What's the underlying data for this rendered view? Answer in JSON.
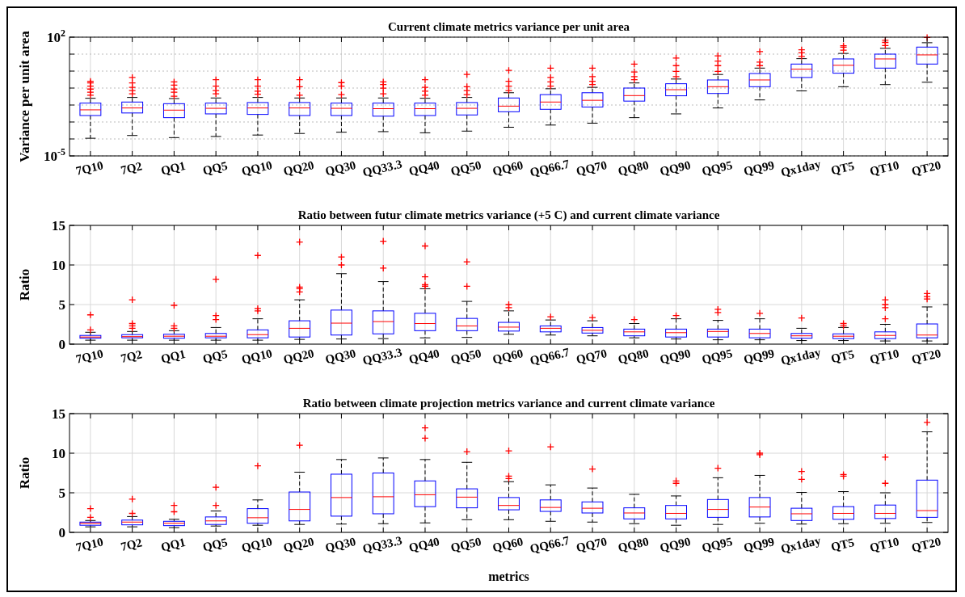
{
  "chart_data": [
    {
      "type": "box",
      "title": "Current climate metrics variance per unit area",
      "ylabel": "Variance per unit area",
      "log": true,
      "grid": true,
      "categories": [
        "7Q10",
        "7Q2",
        "QQ1",
        "QQ5",
        "QQ10",
        "QQ20",
        "QQ30",
        "QQ33.3",
        "QQ40",
        "QQ50",
        "QQ60",
        "QQ66.7",
        "QQ70",
        "QQ80",
        "QQ90",
        "QQ95",
        "QQ99",
        "Qx1day",
        "QT5",
        "QT10",
        "QT20"
      ],
      "ylim": [
        1e-05,
        100
      ],
      "yticks": [
        {
          "value": 1e-05,
          "label": "10$^{-5}$"
        },
        {
          "value": 0.0001,
          "label": null
        },
        {
          "value": 0.001,
          "label": null
        },
        {
          "value": 0.01,
          "label": null
        },
        {
          "value": 0.1,
          "label": null
        },
        {
          "value": 1,
          "label": null
        },
        {
          "value": 10,
          "label": null
        },
        {
          "value": 100,
          "label": "10$^{2}$"
        }
      ],
      "boxes": [
        {
          "low": 0.00011,
          "q1": 0.0024,
          "median": 0.0052,
          "q3": 0.013,
          "high": 0.025,
          "outliers": [
            0.038,
            0.057,
            0.087,
            0.13,
            0.2,
            0.25
          ]
        },
        {
          "low": 0.00016,
          "q1": 0.0034,
          "median": 0.0067,
          "q3": 0.015,
          "high": 0.028,
          "outliers": [
            0.046,
            0.071,
            0.11,
            0.2,
            0.42
          ]
        },
        {
          "low": 0.00012,
          "q1": 0.0018,
          "median": 0.005,
          "q3": 0.012,
          "high": 0.024,
          "outliers": [
            0.033,
            0.057,
            0.087,
            0.15,
            0.23
          ]
        },
        {
          "low": 0.00014,
          "q1": 0.003,
          "median": 0.0064,
          "q3": 0.013,
          "high": 0.026,
          "outliers": [
            0.046,
            0.071,
            0.13,
            0.31
          ]
        },
        {
          "low": 0.00017,
          "q1": 0.0028,
          "median": 0.0067,
          "q3": 0.014,
          "high": 0.028,
          "outliers": [
            0.043,
            0.065,
            0.13,
            0.31
          ]
        },
        {
          "low": 0.00021,
          "q1": 0.0024,
          "median": 0.0067,
          "q3": 0.014,
          "high": 0.026,
          "outliers": [
            0.038,
            0.12,
            0.31
          ]
        },
        {
          "low": 0.00025,
          "q1": 0.0024,
          "median": 0.0064,
          "q3": 0.013,
          "high": 0.026,
          "outliers": [
            0.041,
            0.13,
            0.21
          ]
        },
        {
          "low": 0.00027,
          "q1": 0.0022,
          "median": 0.0061,
          "q3": 0.013,
          "high": 0.026,
          "outliers": [
            0.046,
            0.099,
            0.16,
            0.23
          ]
        },
        {
          "low": 0.00023,
          "q1": 0.0024,
          "median": 0.0061,
          "q3": 0.013,
          "high": 0.025,
          "outliers": [
            0.038,
            0.065,
            0.11,
            0.31
          ]
        },
        {
          "low": 0.00029,
          "q1": 0.0026,
          "median": 0.0064,
          "q3": 0.014,
          "high": 0.028,
          "outliers": [
            0.041,
            0.071,
            0.12,
            0.63
          ]
        },
        {
          "low": 0.00049,
          "q1": 0.004,
          "median": 0.0086,
          "q3": 0.026,
          "high": 0.053,
          "outliers": [
            0.071,
            0.13,
            0.25,
            1.1
          ]
        },
        {
          "low": 0.00066,
          "q1": 0.0056,
          "median": 0.015,
          "q3": 0.041,
          "high": 0.091,
          "outliers": [
            0.13,
            0.23,
            0.42,
            1.5
          ]
        },
        {
          "low": 0.00085,
          "q1": 0.0076,
          "median": 0.019,
          "q3": 0.053,
          "high": 0.11,
          "outliers": [
            0.16,
            0.25,
            0.47,
            1.5
          ]
        },
        {
          "low": 0.0018,
          "q1": 0.017,
          "median": 0.036,
          "q3": 0.1,
          "high": 0.2,
          "outliers": [
            0.31,
            0.47,
            0.89,
            2.6
          ]
        },
        {
          "low": 0.003,
          "q1": 0.035,
          "median": 0.08,
          "q3": 0.18,
          "high": 0.34,
          "outliers": [
            0.47,
            0.97,
            2.1,
            5.9
          ]
        },
        {
          "low": 0.0067,
          "q1": 0.048,
          "median": 0.12,
          "q3": 0.3,
          "high": 0.63,
          "outliers": [
            0.97,
            2.1,
            3.9,
            8
          ]
        },
        {
          "low": 0.02,
          "q1": 0.12,
          "median": 0.3,
          "q3": 0.72,
          "high": 1.5,
          "outliers": [
            2.1,
            3.4,
            14
          ]
        },
        {
          "low": 0.068,
          "q1": 0.42,
          "median": 1.3,
          "q3": 2.6,
          "high": 5.4,
          "outliers": [
            7.3,
            12,
            18
          ]
        },
        {
          "low": 0.12,
          "q1": 0.75,
          "median": 2.2,
          "q3": 5.2,
          "high": 11,
          "outliers": [
            17,
            26,
            31
          ]
        },
        {
          "low": 0.16,
          "q1": 1.5,
          "median": 5.2,
          "q3": 10,
          "high": 22,
          "outliers": [
            32,
            49,
            66
          ]
        },
        {
          "low": 0.22,
          "q1": 2.6,
          "median": 9,
          "q3": 26,
          "high": 47,
          "outliers": [
            95
          ]
        }
      ]
    },
    {
      "type": "box",
      "title": "Ratio between futur climate metrics variance (+5 C) and current climate variance",
      "ylabel": "Ratio",
      "grid": true,
      "categories": [
        "7Q10",
        "7Q2",
        "QQ1",
        "QQ5",
        "QQ10",
        "QQ20",
        "QQ30",
        "QQ33.3",
        "QQ40",
        "QQ50",
        "QQ60",
        "QQ66.7",
        "QQ70",
        "QQ80",
        "QQ90",
        "QQ95",
        "QQ99",
        "Qx1day",
        "QT5",
        "QT10",
        "QT20"
      ],
      "ylim": [
        0,
        15
      ],
      "yticks": [
        0,
        5,
        10,
        15
      ],
      "boxes": [
        {
          "low": 0.5,
          "q1": 0.75,
          "median": 0.9,
          "q3": 1.1,
          "high": 1.5,
          "outliers": [
            1.8,
            3.7
          ]
        },
        {
          "low": 0.5,
          "q1": 0.8,
          "median": 0.95,
          "q3": 1.2,
          "high": 1.6,
          "outliers": [
            2,
            2.3,
            2.6,
            5.6
          ]
        },
        {
          "low": 0.5,
          "q1": 0.75,
          "median": 1,
          "q3": 1.25,
          "high": 1.7,
          "outliers": [
            2,
            2.3,
            4.9
          ]
        },
        {
          "low": 0.5,
          "q1": 0.8,
          "median": 1,
          "q3": 1.35,
          "high": 2.1,
          "outliers": [
            3.1,
            3.6,
            8.2
          ]
        },
        {
          "low": 0.5,
          "q1": 0.8,
          "median": 1.2,
          "q3": 1.8,
          "high": 3.2,
          "outliers": [
            4.2,
            4.5,
            11.2
          ]
        },
        {
          "low": 0.6,
          "q1": 0.9,
          "median": 2,
          "q3": 2.95,
          "high": 5.6,
          "outliers": [
            6.6,
            7,
            7.2,
            12.9
          ]
        },
        {
          "low": 0.65,
          "q1": 1.15,
          "median": 2.65,
          "q3": 4.3,
          "high": 8.9,
          "outliers": [
            10,
            11
          ]
        },
        {
          "low": 0.7,
          "q1": 1.3,
          "median": 2.85,
          "q3": 4.2,
          "high": 7.9,
          "outliers": [
            9.6,
            13
          ]
        },
        {
          "low": 0.8,
          "q1": 1.7,
          "median": 2.6,
          "q3": 3.9,
          "high": 7,
          "outliers": [
            7.3,
            7.5,
            8.5,
            12.4
          ]
        },
        {
          "low": 0.85,
          "q1": 1.7,
          "median": 2.3,
          "q3": 3.25,
          "high": 5.4,
          "outliers": [
            7.3,
            10.4
          ]
        },
        {
          "low": 1.25,
          "q1": 1.65,
          "median": 2.15,
          "q3": 2.75,
          "high": 4.2,
          "outliers": [
            4.6,
            5
          ]
        },
        {
          "low": 1.15,
          "q1": 1.55,
          "median": 2,
          "q3": 2.3,
          "high": 3.05,
          "outliers": [
            3.45
          ]
        },
        {
          "low": 1.05,
          "q1": 1.4,
          "median": 1.75,
          "q3": 2.1,
          "high": 2.95,
          "outliers": [
            3.35
          ]
        },
        {
          "low": 0.8,
          "q1": 1.05,
          "median": 1.55,
          "q3": 1.9,
          "high": 2.6,
          "outliers": [
            3.1
          ]
        },
        {
          "low": 0.65,
          "q1": 0.9,
          "median": 1.45,
          "q3": 1.9,
          "high": 3.2,
          "outliers": [
            3.6
          ]
        },
        {
          "low": 0.55,
          "q1": 0.9,
          "median": 1.6,
          "q3": 1.9,
          "high": 3,
          "outliers": [
            4,
            4.4
          ]
        },
        {
          "low": 0.55,
          "q1": 0.8,
          "median": 1.35,
          "q3": 1.9,
          "high": 3.2,
          "outliers": [
            3.9
          ]
        },
        {
          "low": 0.45,
          "q1": 0.75,
          "median": 1.05,
          "q3": 1.35,
          "high": 2,
          "outliers": [
            3.3
          ]
        },
        {
          "low": 0.45,
          "q1": 0.7,
          "median": 1,
          "q3": 1.3,
          "high": 2.1,
          "outliers": [
            2.3,
            2.6
          ]
        },
        {
          "low": 0.4,
          "q1": 0.7,
          "median": 1.1,
          "q3": 1.55,
          "high": 2.5,
          "outliers": [
            3.2,
            4.6,
            5,
            5.6
          ]
        },
        {
          "low": 0.4,
          "q1": 0.8,
          "median": 1.15,
          "q3": 2.55,
          "high": 4.7,
          "outliers": [
            5.7,
            6,
            6.4
          ]
        }
      ]
    },
    {
      "type": "box",
      "title": "Ratio between climate projection metrics variance and current climate variance",
      "ylabel": "Ratio",
      "xlabel": "metrics",
      "grid": true,
      "categories": [
        "7Q10",
        "7Q2",
        "QQ1",
        "QQ5",
        "QQ10",
        "QQ20",
        "QQ30",
        "QQ33.3",
        "QQ40",
        "QQ50",
        "QQ60",
        "QQ66.7",
        "QQ70",
        "QQ80",
        "QQ90",
        "QQ95",
        "QQ99",
        "Qx1day",
        "QT5",
        "QT10",
        "QT20"
      ],
      "ylim": [
        0,
        15
      ],
      "yticks": [
        0,
        5,
        10,
        15
      ],
      "boxes": [
        {
          "low": 0.7,
          "q1": 0.9,
          "median": 1.15,
          "q3": 1.3,
          "high": 1.5,
          "outliers": [
            1.9,
            3
          ]
        },
        {
          "low": 0.7,
          "q1": 0.95,
          "median": 1.3,
          "q3": 1.55,
          "high": 2,
          "outliers": [
            2.4,
            4.2
          ]
        },
        {
          "low": 0.6,
          "q1": 0.85,
          "median": 1.15,
          "q3": 1.4,
          "high": 1.65,
          "outliers": [
            2.6,
            3.4
          ]
        },
        {
          "low": 0.8,
          "q1": 1,
          "median": 1.45,
          "q3": 1.95,
          "high": 2.7,
          "outliers": [
            3.4,
            5.7
          ]
        },
        {
          "low": 0.9,
          "q1": 1.15,
          "median": 1.85,
          "q3": 3,
          "high": 4.1,
          "outliers": [
            8.4
          ]
        },
        {
          "low": 1,
          "q1": 1.45,
          "median": 2.9,
          "q3": 5.1,
          "high": 7.6,
          "outliers": [
            11
          ]
        },
        {
          "low": 1.05,
          "q1": 2.05,
          "median": 4.4,
          "q3": 7.35,
          "high": 9.2
        },
        {
          "low": 1.1,
          "q1": 2.35,
          "median": 4.5,
          "q3": 7.5,
          "high": 9.4
        },
        {
          "low": 1.2,
          "q1": 3.25,
          "median": 4.75,
          "q3": 6.5,
          "high": 9.2,
          "outliers": [
            11.9,
            13.2
          ]
        },
        {
          "low": 1.6,
          "q1": 3.1,
          "median": 4.45,
          "q3": 5.5,
          "high": 8.85,
          "outliers": [
            10.2
          ]
        },
        {
          "low": 1.6,
          "q1": 2.85,
          "median": 3.4,
          "q3": 4.4,
          "high": 6.4,
          "outliers": [
            6.8,
            7.1,
            10.3
          ]
        },
        {
          "low": 1.4,
          "q1": 2.65,
          "median": 3.15,
          "q3": 4.1,
          "high": 6,
          "outliers": [
            10.8
          ]
        },
        {
          "low": 1.3,
          "q1": 2.45,
          "median": 3.05,
          "q3": 3.85,
          "high": 5.6,
          "outliers": [
            8
          ]
        },
        {
          "low": 1.1,
          "q1": 1.7,
          "median": 2.45,
          "q3": 3.1,
          "high": 4.8
        },
        {
          "low": 0.9,
          "q1": 1.7,
          "median": 2.4,
          "q3": 3.4,
          "high": 4.6,
          "outliers": [
            6.2,
            6.5
          ]
        },
        {
          "low": 1,
          "q1": 1.9,
          "median": 2.9,
          "q3": 4.15,
          "high": 6.9,
          "outliers": [
            8.1
          ]
        },
        {
          "low": 1.15,
          "q1": 1.95,
          "median": 3.2,
          "q3": 4.4,
          "high": 7.2,
          "outliers": [
            9.8,
            10
          ]
        },
        {
          "low": 1.05,
          "q1": 1.5,
          "median": 2.35,
          "q3": 3.05,
          "high": 5.05,
          "outliers": [
            6.7,
            7.7
          ]
        },
        {
          "low": 1.1,
          "q1": 1.65,
          "median": 2.4,
          "q3": 3.25,
          "high": 5.15,
          "outliers": [
            7.1,
            7.3
          ]
        },
        {
          "low": 1.15,
          "q1": 1.75,
          "median": 2.4,
          "q3": 3.45,
          "high": 5,
          "outliers": [
            6.2,
            9.5
          ]
        },
        {
          "low": 1.25,
          "q1": 1.9,
          "median": 2.75,
          "q3": 6.6,
          "high": 12.7,
          "outliers": [
            13.9
          ]
        }
      ]
    }
  ]
}
